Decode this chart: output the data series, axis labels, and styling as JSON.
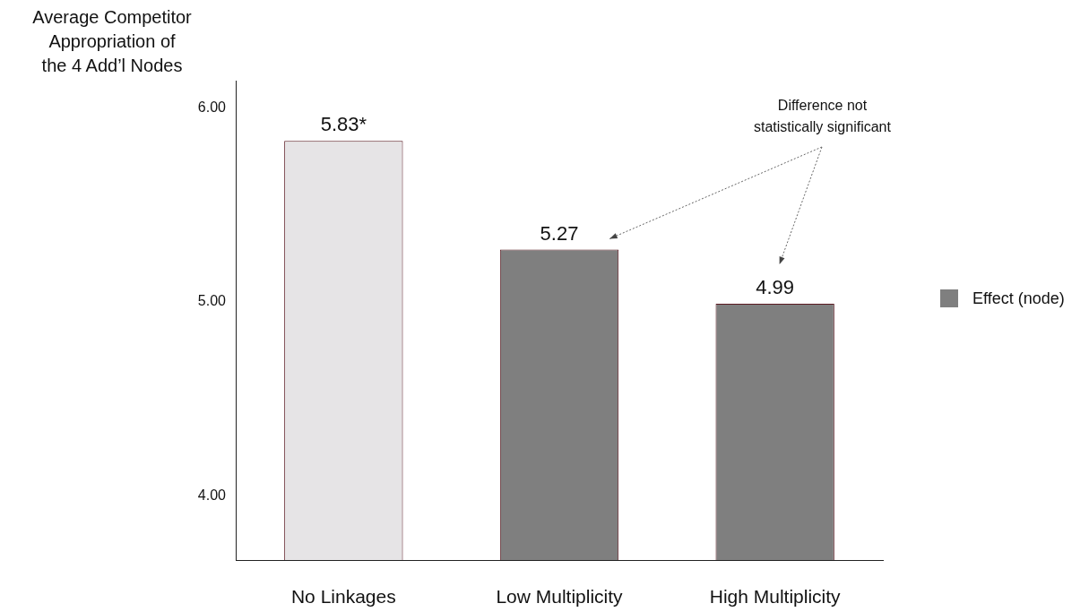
{
  "chart_data": {
    "type": "bar",
    "ylabel": "Average Competitor\nAppropriation of\nthe 4 Add’l Nodes",
    "categories": [
      "No Linkages",
      "Low Multiplicity",
      "High Multiplicity"
    ],
    "series": [
      {
        "name": "Effect (node)",
        "color": "#7f7f7f",
        "colors": [
          "#e6e4e6",
          "#7f7f7f",
          "#7f7f7f"
        ],
        "values": [
          5.83,
          5.27,
          4.99
        ],
        "value_labels": [
          "5.83*",
          "5.27",
          "4.99"
        ]
      }
    ],
    "ylim": [
      3.67,
      6.14
    ],
    "yticks": [
      {
        "value": 4,
        "label": "4.00"
      },
      {
        "value": 5,
        "label": "5.00"
      },
      {
        "value": 6,
        "label": "6.00"
      }
    ],
    "grid": false,
    "legend": "right",
    "annotations": [
      "Difference not\nstatistically significant"
    ]
  }
}
